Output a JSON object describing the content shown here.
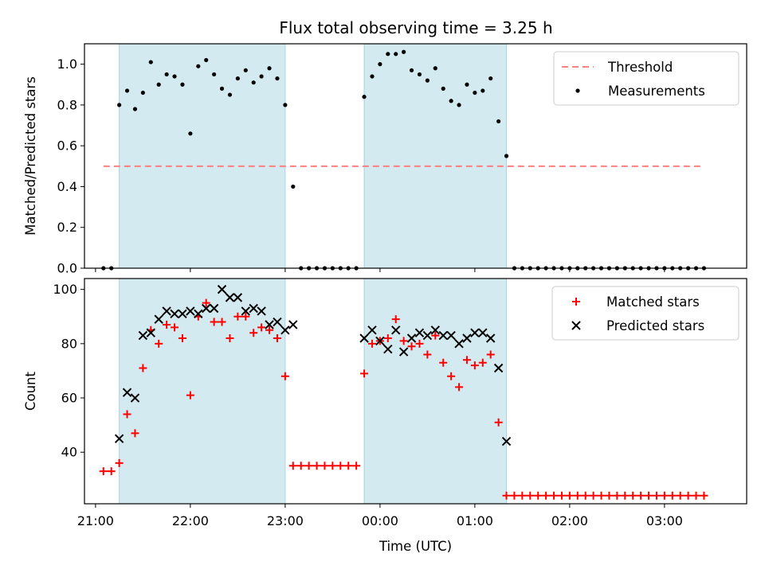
{
  "title": "Flux total observing time = 3.25 h",
  "colors": {
    "shade": "#d4eaf1",
    "threshold": "#ff8080",
    "measurements": "#000000",
    "matched": "#ff0000",
    "predicted": "#000000"
  },
  "chart_data": [
    {
      "type": "scatter",
      "ylabel": "Matched/Predicted stars",
      "xlabel": "",
      "xlim": [
        "20:53",
        "03:52"
      ],
      "ylim": [
        0,
        1.1
      ],
      "yticks": [
        "0.0",
        "0.2",
        "0.4",
        "0.6",
        "0.8",
        "1.0"
      ],
      "legend_position": "top-right",
      "shaded_intervals": [
        [
          "21:15",
          "23:00"
        ],
        [
          "23:50",
          "01:20"
        ]
      ],
      "threshold": {
        "name": "Threshold",
        "y": 0.5,
        "x_range": [
          "21:05",
          "03:25"
        ]
      },
      "series": [
        {
          "name": "Measurements",
          "x": [
            "21:05",
            "21:10",
            "21:15",
            "21:20",
            "21:25",
            "21:30",
            "21:35",
            "21:40",
            "21:45",
            "21:50",
            "21:55",
            "22:00",
            "22:05",
            "22:10",
            "22:15",
            "22:20",
            "22:25",
            "22:30",
            "22:35",
            "22:40",
            "22:45",
            "22:50",
            "22:55",
            "23:00",
            "23:05",
            "23:10",
            "23:15",
            "23:20",
            "23:25",
            "23:30",
            "23:35",
            "23:40",
            "23:45",
            "23:50",
            "23:55",
            "00:00",
            "00:05",
            "00:10",
            "00:15",
            "00:20",
            "00:25",
            "00:30",
            "00:35",
            "00:40",
            "00:45",
            "00:50",
            "00:55",
            "01:00",
            "01:05",
            "01:10",
            "01:15",
            "01:20",
            "01:25",
            "01:30",
            "01:35",
            "01:40",
            "01:45",
            "01:50",
            "01:55",
            "02:00",
            "02:05",
            "02:10",
            "02:15",
            "02:20",
            "02:25",
            "02:30",
            "02:35",
            "02:40",
            "02:45",
            "02:50",
            "02:55",
            "03:00",
            "03:05",
            "03:10",
            "03:15",
            "03:20",
            "03:25"
          ],
          "y": [
            0,
            0,
            0.8,
            0.87,
            0.78,
            0.86,
            1.01,
            0.9,
            0.95,
            0.94,
            0.9,
            0.66,
            0.99,
            1.02,
            0.95,
            0.88,
            0.85,
            0.93,
            0.97,
            0.91,
            0.94,
            0.98,
            0.93,
            0.8,
            0.4,
            0,
            0,
            0,
            0,
            0,
            0,
            0,
            0,
            0.84,
            0.94,
            1.0,
            1.05,
            1.05,
            1.06,
            0.97,
            0.95,
            0.92,
            0.98,
            0.88,
            0.82,
            0.8,
            0.9,
            0.86,
            0.87,
            0.93,
            0.72,
            0.55,
            0,
            0,
            0,
            0,
            0,
            0,
            0,
            0,
            0,
            0,
            0,
            0,
            0,
            0,
            0,
            0,
            0,
            0,
            0,
            0,
            0,
            0,
            0,
            0,
            0
          ]
        }
      ]
    },
    {
      "type": "scatter",
      "ylabel": "Count",
      "xlabel": "Time (UTC)",
      "xlim": [
        "20:53",
        "03:52"
      ],
      "ylim": [
        21,
        104
      ],
      "yticks": [
        "40",
        "60",
        "80",
        "100"
      ],
      "xticks": [
        "21:00",
        "22:00",
        "23:00",
        "00:00",
        "01:00",
        "02:00",
        "03:00"
      ],
      "legend_position": "top-right",
      "shaded_intervals": [
        [
          "21:15",
          "23:00"
        ],
        [
          "23:50",
          "01:20"
        ]
      ],
      "series": [
        {
          "name": "Matched stars",
          "marker": "plus",
          "x": [
            "21:05",
            "21:10",
            "21:15",
            "21:20",
            "21:25",
            "21:30",
            "21:35",
            "21:40",
            "21:45",
            "21:50",
            "21:55",
            "22:00",
            "22:05",
            "22:10",
            "22:15",
            "22:20",
            "22:25",
            "22:30",
            "22:35",
            "22:40",
            "22:45",
            "22:50",
            "22:55",
            "23:00",
            "23:05",
            "23:10",
            "23:15",
            "23:20",
            "23:25",
            "23:30",
            "23:35",
            "23:40",
            "23:45",
            "23:50",
            "23:55",
            "00:00",
            "00:05",
            "00:10",
            "00:15",
            "00:20",
            "00:25",
            "00:30",
            "00:35",
            "00:40",
            "00:45",
            "00:50",
            "00:55",
            "01:00",
            "01:05",
            "01:10",
            "01:15",
            "01:20",
            "01:25",
            "01:30",
            "01:35",
            "01:40",
            "01:45",
            "01:50",
            "01:55",
            "02:00",
            "02:05",
            "02:10",
            "02:15",
            "02:20",
            "02:25",
            "02:30",
            "02:35",
            "02:40",
            "02:45",
            "02:50",
            "02:55",
            "03:00",
            "03:05",
            "03:10",
            "03:15",
            "03:20",
            "03:25"
          ],
          "y": [
            33,
            33,
            36,
            54,
            47,
            71,
            85,
            80,
            87,
            86,
            82,
            61,
            90,
            95,
            88,
            88,
            82,
            90,
            90,
            84,
            86,
            85,
            82,
            68,
            35,
            35,
            35,
            35,
            35,
            35,
            35,
            35,
            35,
            69,
            80,
            81,
            82,
            89,
            81,
            79,
            80,
            76,
            83,
            73,
            68,
            64,
            74,
            72,
            73,
            76,
            51,
            24,
            24,
            24,
            24,
            24,
            24,
            24,
            24,
            24,
            24,
            24,
            24,
            24,
            24,
            24,
            24,
            24,
            24,
            24,
            24,
            24,
            24,
            24,
            24,
            24,
            24
          ]
        },
        {
          "name": "Predicted stars",
          "marker": "x",
          "x": [
            "21:15",
            "21:20",
            "21:25",
            "21:30",
            "21:35",
            "21:40",
            "21:45",
            "21:50",
            "21:55",
            "22:00",
            "22:05",
            "22:10",
            "22:15",
            "22:20",
            "22:25",
            "22:30",
            "22:35",
            "22:40",
            "22:45",
            "22:50",
            "22:55",
            "23:00",
            "23:05",
            "23:50",
            "23:55",
            "00:00",
            "00:05",
            "00:10",
            "00:15",
            "00:20",
            "00:25",
            "00:30",
            "00:35",
            "00:40",
            "00:45",
            "00:50",
            "00:55",
            "01:00",
            "01:05",
            "01:10",
            "01:15",
            "01:20"
          ],
          "y": [
            45,
            62,
            60,
            83,
            84,
            89,
            92,
            91,
            91,
            92,
            91,
            93,
            93,
            100,
            97,
            97,
            92,
            93,
            92,
            87,
            88,
            85,
            87,
            82,
            85,
            81,
            78,
            85,
            77,
            82,
            84,
            83,
            85,
            83,
            83,
            80,
            82,
            84,
            84,
            82,
            71,
            44
          ]
        }
      ]
    }
  ]
}
